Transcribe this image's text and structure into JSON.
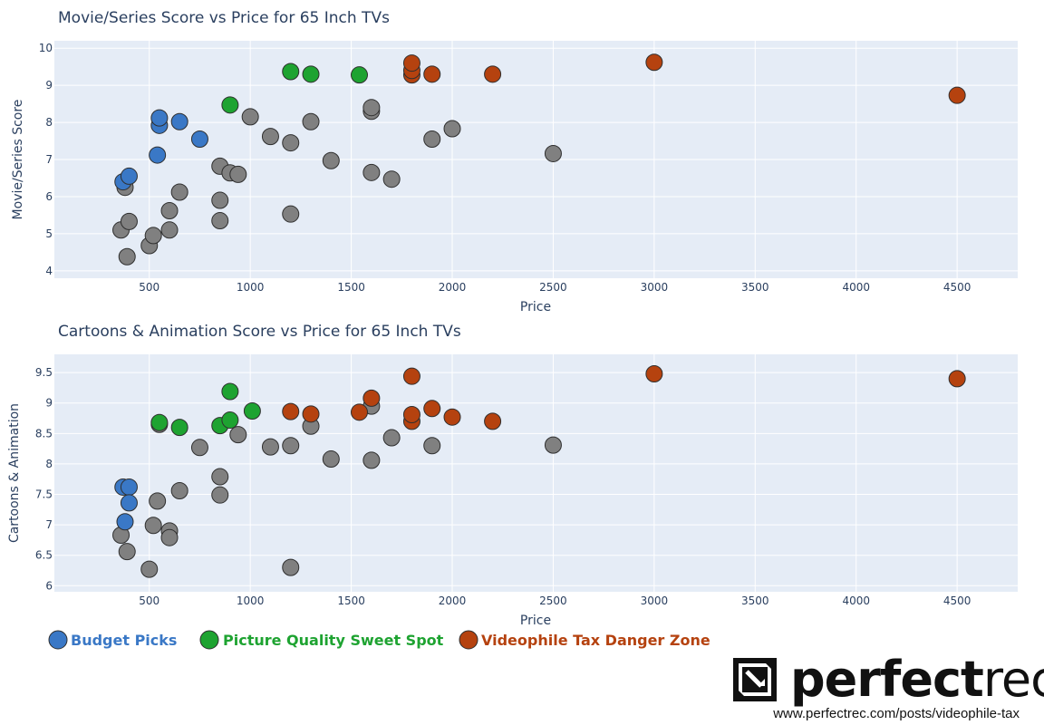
{
  "colors": {
    "plot_bg": "#e5ecf6",
    "grid": "#ffffff",
    "other": "#808080",
    "budget": "#3a78c6",
    "sweet": "#1ea331",
    "danger": "#b5420f",
    "text": "#2a3f5f"
  },
  "legend": [
    {
      "label": "Budget Picks",
      "group": "budget"
    },
    {
      "label": "Picture Quality Sweet Spot",
      "group": "sweet"
    },
    {
      "label": "Videophile Tax Danger Zone",
      "group": "danger"
    }
  ],
  "brand": {
    "name_part1": "perfect",
    "name_part2": "rec",
    "url": "www.perfectrec.com/posts/videophile-tax",
    "icon": "perfectrec-logo-icon"
  },
  "chart_data": [
    {
      "type": "scatter",
      "title": "Movie/Series Score vs Price for 65 Inch TVs",
      "xlabel": "Price",
      "ylabel": "Movie/Series Score",
      "xlim": [
        30,
        4800
      ],
      "ylim": [
        3.8,
        10.2
      ],
      "xticks": [
        500,
        1000,
        1500,
        2000,
        2500,
        3000,
        3500,
        4000,
        4500
      ],
      "yticks": [
        4,
        5,
        6,
        7,
        8,
        9,
        10
      ],
      "grid": true,
      "series": [
        {
          "name": "Other",
          "group": "other",
          "points": [
            [
              360,
              5.1
            ],
            [
              380,
              6.25
            ],
            [
              390,
              4.38
            ],
            [
              400,
              5.33
            ],
            [
              500,
              4.68
            ],
            [
              520,
              4.95
            ],
            [
              600,
              5.1
            ],
            [
              600,
              5.62
            ],
            [
              650,
              6.12
            ],
            [
              850,
              5.35
            ],
            [
              850,
              5.9
            ],
            [
              850,
              6.82
            ],
            [
              900,
              6.64
            ],
            [
              940,
              6.6
            ],
            [
              1000,
              8.15
            ],
            [
              1100,
              7.62
            ],
            [
              1200,
              5.53
            ],
            [
              1200,
              7.45
            ],
            [
              1300,
              8.02
            ],
            [
              1400,
              6.97
            ],
            [
              1600,
              6.65
            ],
            [
              1600,
              8.3
            ],
            [
              1600,
              8.4
            ],
            [
              1700,
              6.47
            ],
            [
              1900,
              7.55
            ],
            [
              2000,
              7.83
            ],
            [
              2500,
              7.16
            ]
          ]
        },
        {
          "name": "Budget Picks",
          "group": "budget",
          "points": [
            [
              370,
              6.4
            ],
            [
              400,
              6.55
            ],
            [
              540,
              7.12
            ],
            [
              550,
              7.92
            ],
            [
              550,
              8.12
            ],
            [
              650,
              8.02
            ],
            [
              750,
              7.55
            ]
          ]
        },
        {
          "name": "Picture Quality Sweet Spot",
          "group": "sweet",
          "points": [
            [
              900,
              8.47
            ],
            [
              1200,
              9.37
            ],
            [
              1300,
              9.3
            ],
            [
              1540,
              9.28
            ]
          ]
        },
        {
          "name": "Videophile Tax Danger Zone",
          "group": "danger",
          "points": [
            [
              1800,
              9.28
            ],
            [
              1800,
              9.4
            ],
            [
              1800,
              9.6
            ],
            [
              1900,
              9.3
            ],
            [
              2200,
              9.3
            ],
            [
              3000,
              9.62
            ],
            [
              4500,
              8.73
            ]
          ]
        }
      ]
    },
    {
      "type": "scatter",
      "title": "Cartoons & Animation Score vs Price for 65 Inch TVs",
      "xlabel": "Price",
      "ylabel": "Cartoons & Animation",
      "xlim": [
        30,
        4800
      ],
      "ylim": [
        5.9,
        9.8
      ],
      "xticks": [
        500,
        1000,
        1500,
        2000,
        2500,
        3000,
        3500,
        4000,
        4500
      ],
      "yticks": [
        6,
        6.5,
        7,
        7.5,
        8,
        8.5,
        9,
        9.5
      ],
      "grid": true,
      "series": [
        {
          "name": "Other",
          "group": "other",
          "points": [
            [
              360,
              6.83
            ],
            [
              390,
              6.56
            ],
            [
              500,
              6.27
            ],
            [
              520,
              6.99
            ],
            [
              540,
              7.39
            ],
            [
              550,
              8.65
            ],
            [
              600,
              6.9
            ],
            [
              600,
              6.79
            ],
            [
              650,
              7.56
            ],
            [
              750,
              8.27
            ],
            [
              850,
              7.79
            ],
            [
              850,
              7.49
            ],
            [
              940,
              8.48
            ],
            [
              1100,
              8.28
            ],
            [
              1200,
              6.3
            ],
            [
              1200,
              8.3
            ],
            [
              1300,
              8.62
            ],
            [
              1400,
              8.08
            ],
            [
              1600,
              8.06
            ],
            [
              1600,
              8.95
            ],
            [
              1700,
              8.43
            ],
            [
              1900,
              8.3
            ],
            [
              2500,
              8.31
            ]
          ]
        },
        {
          "name": "Budget Picks",
          "group": "budget",
          "points": [
            [
              370,
              7.62
            ],
            [
              400,
              7.62
            ],
            [
              380,
              7.05
            ],
            [
              400,
              7.36
            ]
          ]
        },
        {
          "name": "Picture Quality Sweet Spot",
          "group": "sweet",
          "points": [
            [
              550,
              8.68
            ],
            [
              650,
              8.6
            ],
            [
              850,
              8.63
            ],
            [
              900,
              8.72
            ],
            [
              900,
              9.19
            ],
            [
              1010,
              8.87
            ]
          ]
        },
        {
          "name": "Videophile Tax Danger Zone",
          "group": "danger",
          "points": [
            [
              1200,
              8.86
            ],
            [
              1300,
              8.82
            ],
            [
              1540,
              8.85
            ],
            [
              1600,
              9.08
            ],
            [
              1800,
              8.7
            ],
            [
              1800,
              8.81
            ],
            [
              1800,
              9.44
            ],
            [
              1900,
              8.91
            ],
            [
              2000,
              8.77
            ],
            [
              2200,
              8.7
            ],
            [
              3000,
              9.48
            ],
            [
              4500,
              9.4
            ]
          ]
        }
      ]
    }
  ]
}
